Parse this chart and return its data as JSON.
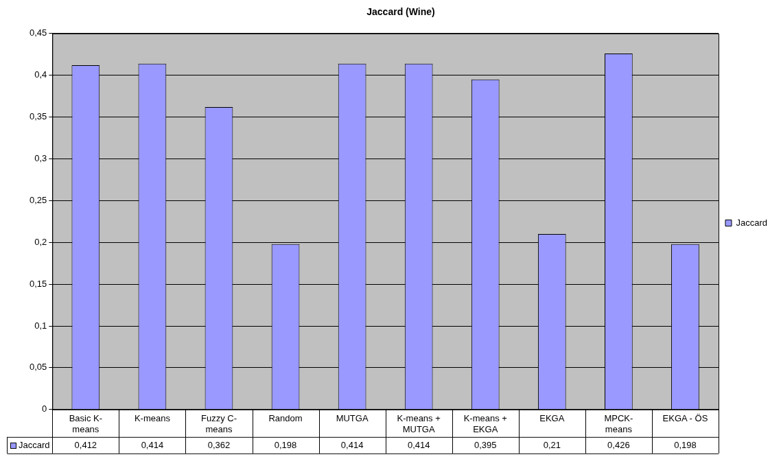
{
  "chart_data": {
    "type": "bar",
    "title": "Jaccard (Wine)",
    "categories": [
      "Basic K-means",
      "K-means",
      "Fuzzy C-means",
      "Random",
      "MUTGA",
      "K-means + MUTGA",
      "K-means + EKGA",
      "EKGA",
      "MPCK-means",
      "EKGA - ÖS"
    ],
    "series": [
      {
        "name": "Jaccard",
        "color": "#9999ff",
        "values": [
          0.412,
          0.414,
          0.362,
          0.198,
          0.414,
          0.414,
          0.395,
          0.21,
          0.426,
          0.198
        ],
        "value_labels": [
          "0,412",
          "0,414",
          "0,362",
          "0,198",
          "0,414",
          "0,414",
          "0,395",
          "0,21",
          "0,426",
          "0,198"
        ]
      }
    ],
    "ylim": [
      0,
      0.45
    ],
    "yticks": [
      0,
      {
        "value": 0.05,
        "label": "0,05"
      },
      {
        "value": 0.1,
        "label": "0,1"
      },
      {
        "value": 0.15,
        "label": "0,15"
      },
      {
        "value": 0.2,
        "label": "0,2"
      },
      {
        "value": 0.25,
        "label": "0,25"
      },
      {
        "value": 0.3,
        "label": "0,3"
      },
      {
        "value": 0.35,
        "label": "0,35"
      },
      {
        "value": 0.4,
        "label": "0,4"
      },
      {
        "value": 0.45,
        "label": "0,45"
      }
    ],
    "grid": "y",
    "legend": "right"
  }
}
